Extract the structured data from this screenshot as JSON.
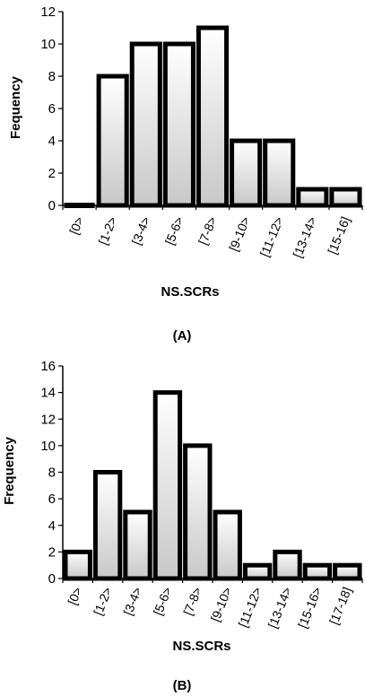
{
  "chart_data": [
    {
      "type": "bar",
      "panel_label": "(A)",
      "xlabel": "NS.SCRs",
      "ylabel": "Fequency",
      "ylim": [
        0,
        12
      ],
      "yticks": [
        0,
        2,
        4,
        6,
        8,
        10,
        12
      ],
      "categories": [
        "[0>",
        "[1-2>",
        "[3-4>",
        "[5-6>",
        "[7-8>",
        "[9-10>",
        "[11-12>",
        "[13-14>",
        "[15-16]"
      ],
      "values": [
        0,
        8,
        10,
        10,
        11,
        4,
        4,
        1,
        1
      ],
      "grid": false,
      "colors": {
        "bar_fill_top": "#ffffff",
        "bar_fill_bottom": "#c8c8c8",
        "bar_stroke": "#000000"
      }
    },
    {
      "type": "bar",
      "panel_label": "(B)",
      "xlabel": "NS.SCRs",
      "ylabel": "Frequency",
      "ylim": [
        0,
        16
      ],
      "yticks": [
        0,
        2,
        4,
        6,
        8,
        10,
        12,
        14,
        16
      ],
      "categories": [
        "[0>",
        "[1-2>",
        "[3-4>",
        "[5-6>",
        "[7-8>",
        "[9-10>",
        "[11-12>",
        "[13-14>",
        "[15-16>",
        "[17-18]"
      ],
      "values": [
        2,
        8,
        5,
        14,
        10,
        5,
        1,
        2,
        1,
        1
      ],
      "grid": false,
      "colors": {
        "bar_fill_top": "#ffffff",
        "bar_fill_bottom": "#c8c8c8",
        "bar_stroke": "#000000"
      }
    }
  ]
}
